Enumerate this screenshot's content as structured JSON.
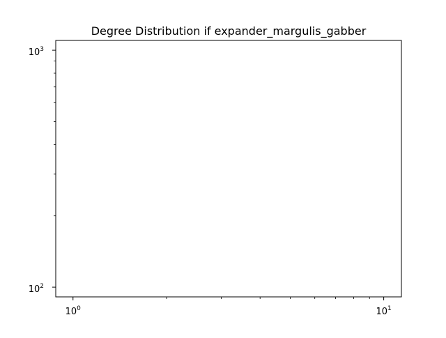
{
  "chart_data": {
    "type": "scatter",
    "title": "Degree Distribution if expander_margulis_gabber",
    "xlabel": "",
    "ylabel": "",
    "xscale": "log",
    "yscale": "log",
    "xlim": [
      0.88,
      11.4
    ],
    "ylim": [
      91,
      1100
    ],
    "grid": false,
    "series": [],
    "x_ticks": [
      {
        "value": 1,
        "base": "10",
        "exp": "0"
      },
      {
        "value": 10,
        "base": "10",
        "exp": "1"
      }
    ],
    "y_ticks": [
      {
        "value": 100,
        "base": "10",
        "exp": "2"
      },
      {
        "value": 1000,
        "base": "10",
        "exp": "3"
      }
    ],
    "x_minor_ticks": [
      2,
      3,
      4,
      5,
      6,
      7,
      8,
      9
    ],
    "y_minor_ticks": [
      200,
      300,
      400,
      500,
      600,
      700,
      800,
      900
    ]
  }
}
